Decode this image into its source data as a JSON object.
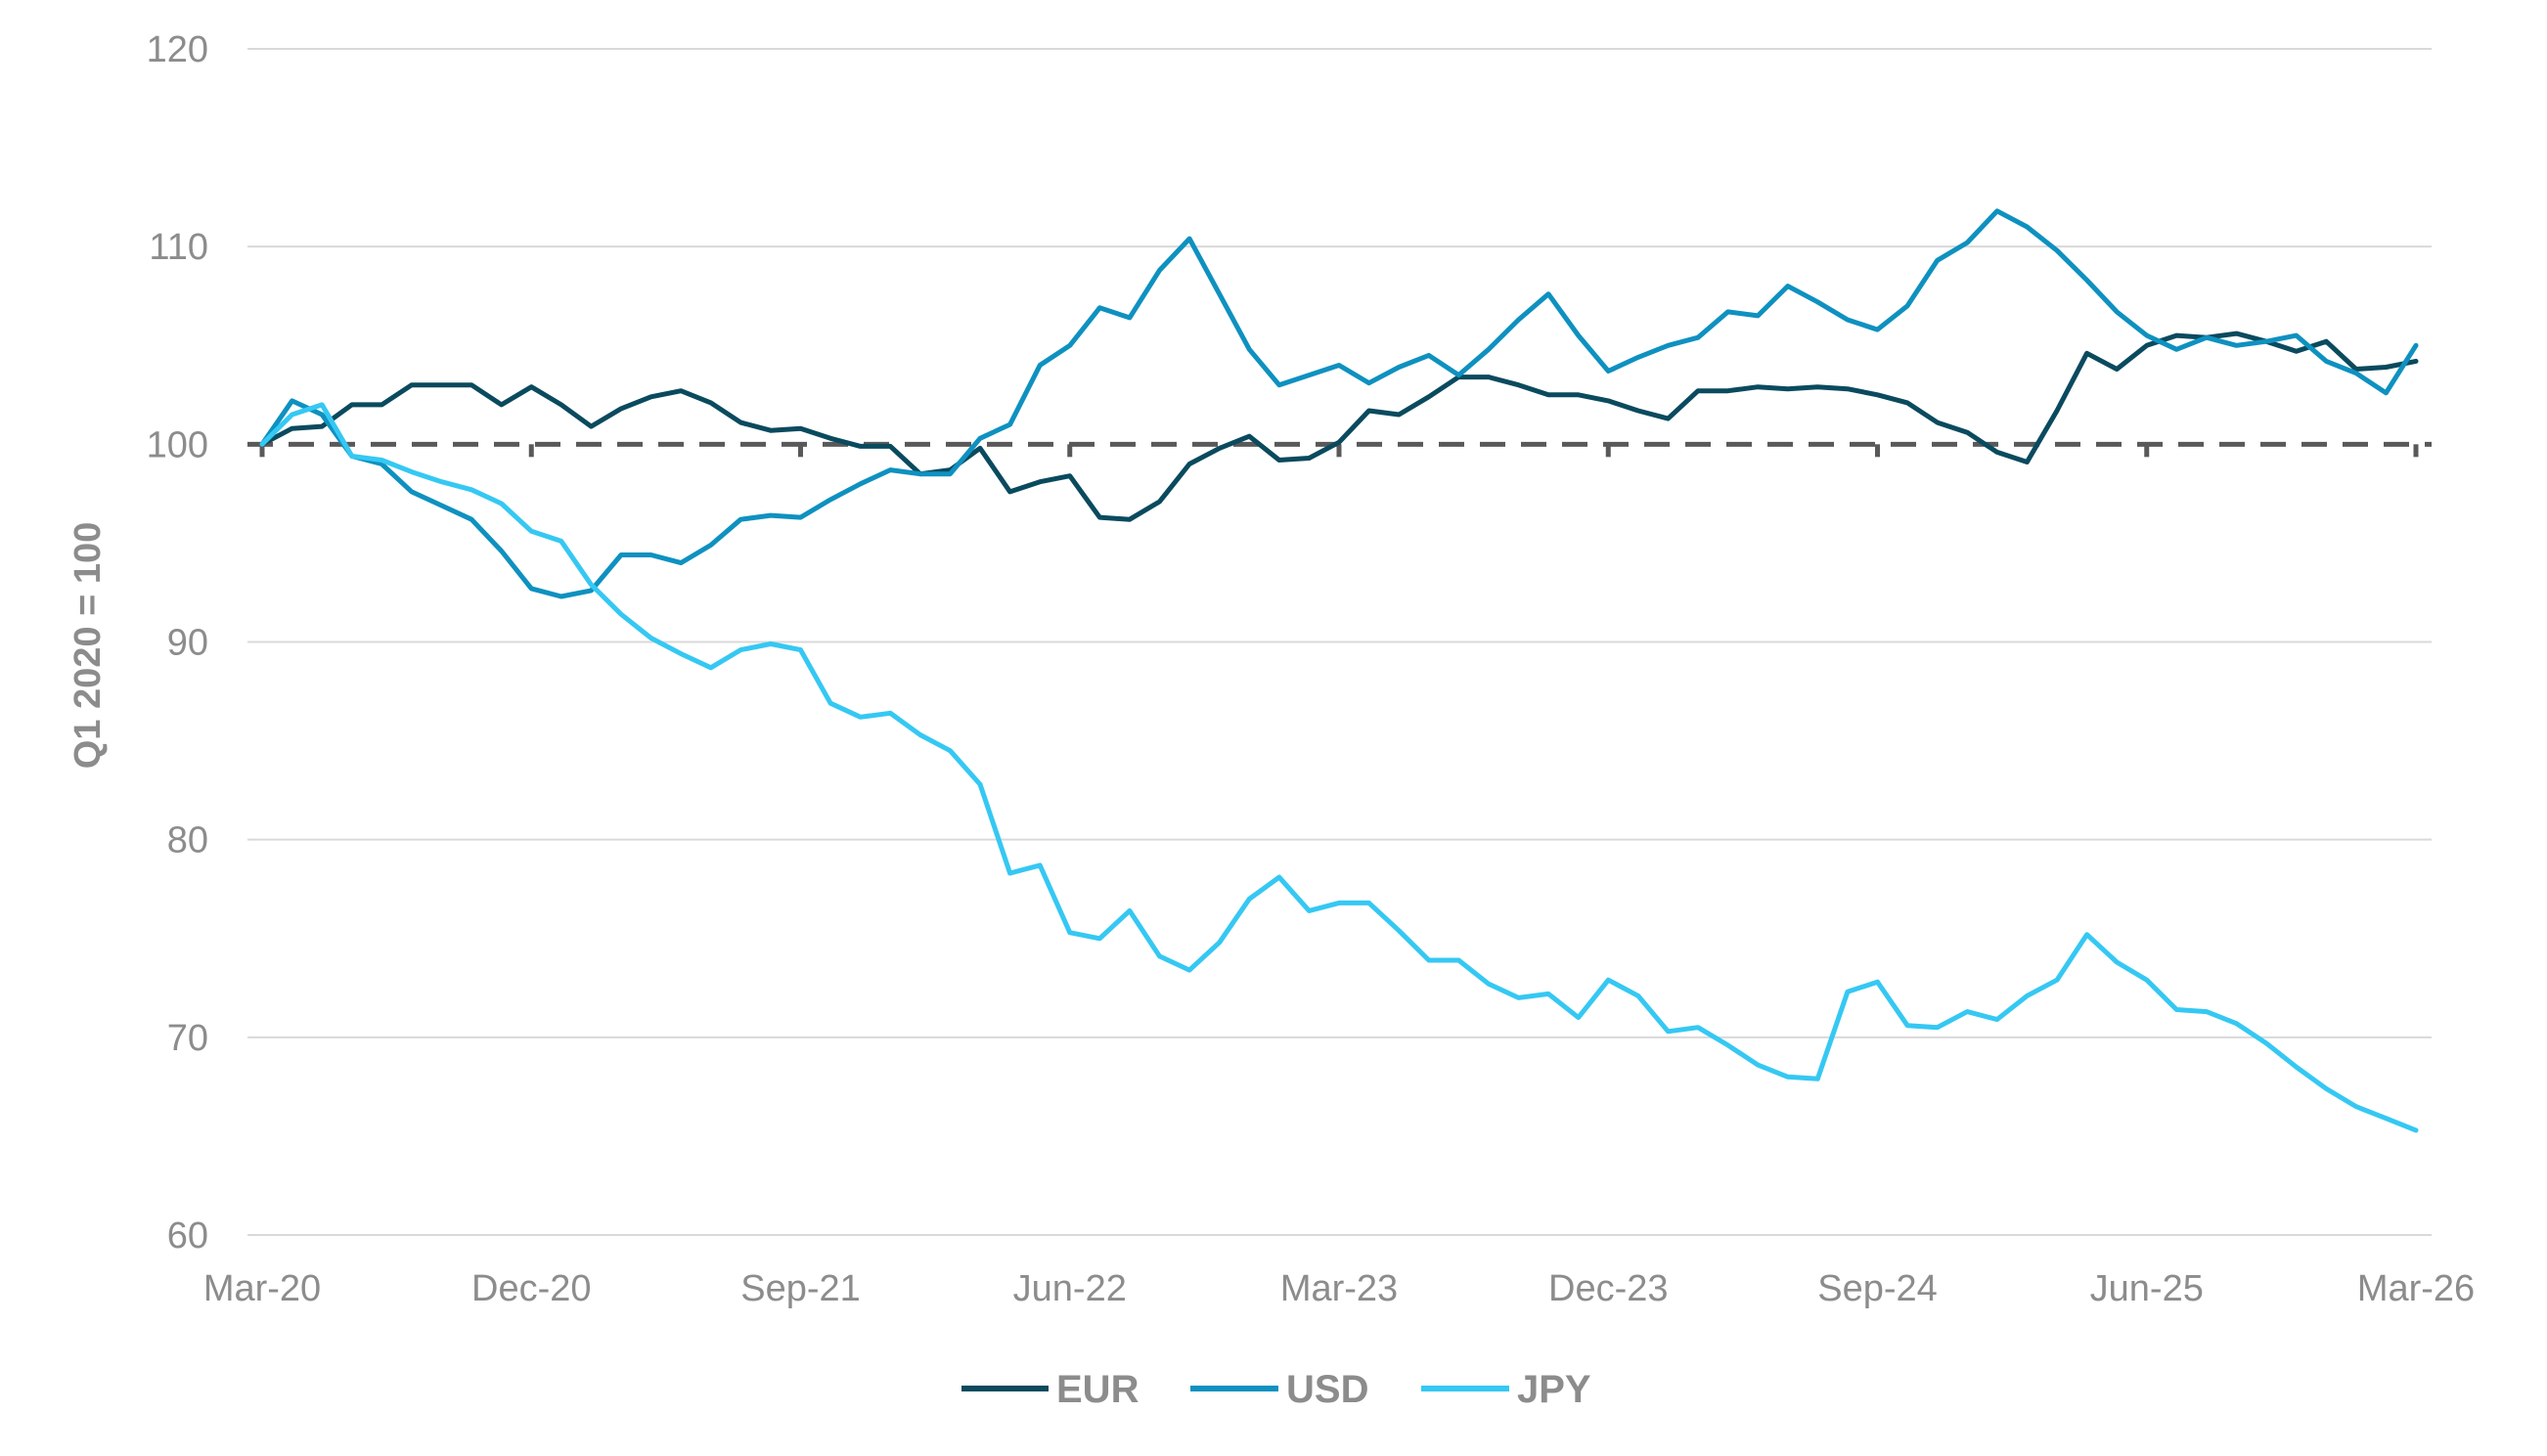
{
  "chart_data": {
    "type": "line",
    "title": "",
    "ylabel": "Q1 2020 = 100",
    "xlabel": "",
    "ylim": [
      60,
      120
    ],
    "yticks": [
      60,
      70,
      80,
      90,
      100,
      110,
      120
    ],
    "x_tick_labels": [
      "Mar-20",
      "Dec-20",
      "Sep-21",
      "Jun-22",
      "Mar-23",
      "Dec-23",
      "Sep-24",
      "Jun-25",
      "Mar-26"
    ],
    "x_range_months": "Mar-20 to Mar-26 (monthly)",
    "grid": "horizontal",
    "legend_position": "bottom",
    "reference_line": {
      "value": 100,
      "style": "dashed",
      "color": "#595959"
    },
    "series": [
      {
        "name": "EUR",
        "color": "#0a4a5e",
        "values": [
          100,
          100.8,
          100.9,
          102,
          102,
          103,
          103,
          103,
          102,
          102.9,
          102,
          100.9,
          101.8,
          102.4,
          102.7,
          102.1,
          101.1,
          100.7,
          100.8,
          100.3,
          99.9,
          99.9,
          98.5,
          98.7,
          99.8,
          97.6,
          98.1,
          98.4,
          96.3,
          96.2,
          97.1,
          99,
          99.8,
          100.4,
          99.2,
          99.3,
          100.1,
          101.7,
          101.5,
          102.4,
          103.4,
          103.4,
          103,
          102.5,
          102.5,
          102.2,
          101.7,
          101.3,
          102.7,
          102.7,
          102.9,
          102.8,
          102.9,
          102.8,
          102.5,
          102.1,
          101.1,
          100.6,
          99.6,
          99.1,
          101.7,
          104.6,
          103.8,
          105,
          105.5,
          105.4,
          105.6,
          105.2,
          104.7,
          105.2,
          103.8,
          103.9,
          104.2
        ]
      },
      {
        "name": "USD",
        "color": "#0e91c0",
        "values": [
          100,
          102.2,
          101.5,
          99.4,
          99,
          97.6,
          96.9,
          96.2,
          94.6,
          92.7,
          92.3,
          92.6,
          94.4,
          94.4,
          94,
          94.9,
          96.2,
          96.4,
          96.3,
          97.2,
          98,
          98.7,
          98.5,
          98.5,
          100.3,
          101,
          104,
          105,
          106.9,
          106.4,
          108.8,
          110.4,
          107.6,
          104.8,
          103,
          103.5,
          104,
          103.1,
          103.9,
          104.5,
          103.5,
          104.8,
          106.3,
          107.6,
          105.5,
          103.7,
          104.4,
          105,
          105.4,
          106.7,
          106.5,
          108,
          107.2,
          106.3,
          105.8,
          107,
          109.3,
          110.2,
          111.8,
          111,
          109.8,
          108.3,
          106.7,
          105.5,
          104.8,
          105.4,
          105,
          105.2,
          105.5,
          104.2,
          103.6,
          102.6,
          105
        ]
      },
      {
        "name": "JPY",
        "color": "#35c8f3",
        "values": [
          100,
          101.5,
          102,
          99.4,
          99.2,
          98.6,
          98.1,
          97.7,
          97,
          95.6,
          95.1,
          92.9,
          91.4,
          90.2,
          89.4,
          88.7,
          89.6,
          89.9,
          89.6,
          86.9,
          86.2,
          86.4,
          85.3,
          84.5,
          82.8,
          78.3,
          78.7,
          75.3,
          75,
          76.4,
          74.1,
          73.4,
          74.8,
          77,
          78.1,
          76.4,
          76.8,
          76.8,
          75.4,
          73.9,
          73.9,
          72.7,
          72,
          72.2,
          71,
          72.9,
          72.1,
          70.3,
          70.5,
          69.6,
          68.6,
          68,
          67.9,
          72.3,
          72.8,
          70.6,
          70.5,
          71.3,
          70.9,
          72.1,
          72.9,
          75.2,
          73.8,
          72.9,
          71.4,
          71.3,
          70.7,
          69.7,
          68.5,
          67.4,
          66.5,
          65.9,
          65.3
        ]
      }
    ]
  }
}
